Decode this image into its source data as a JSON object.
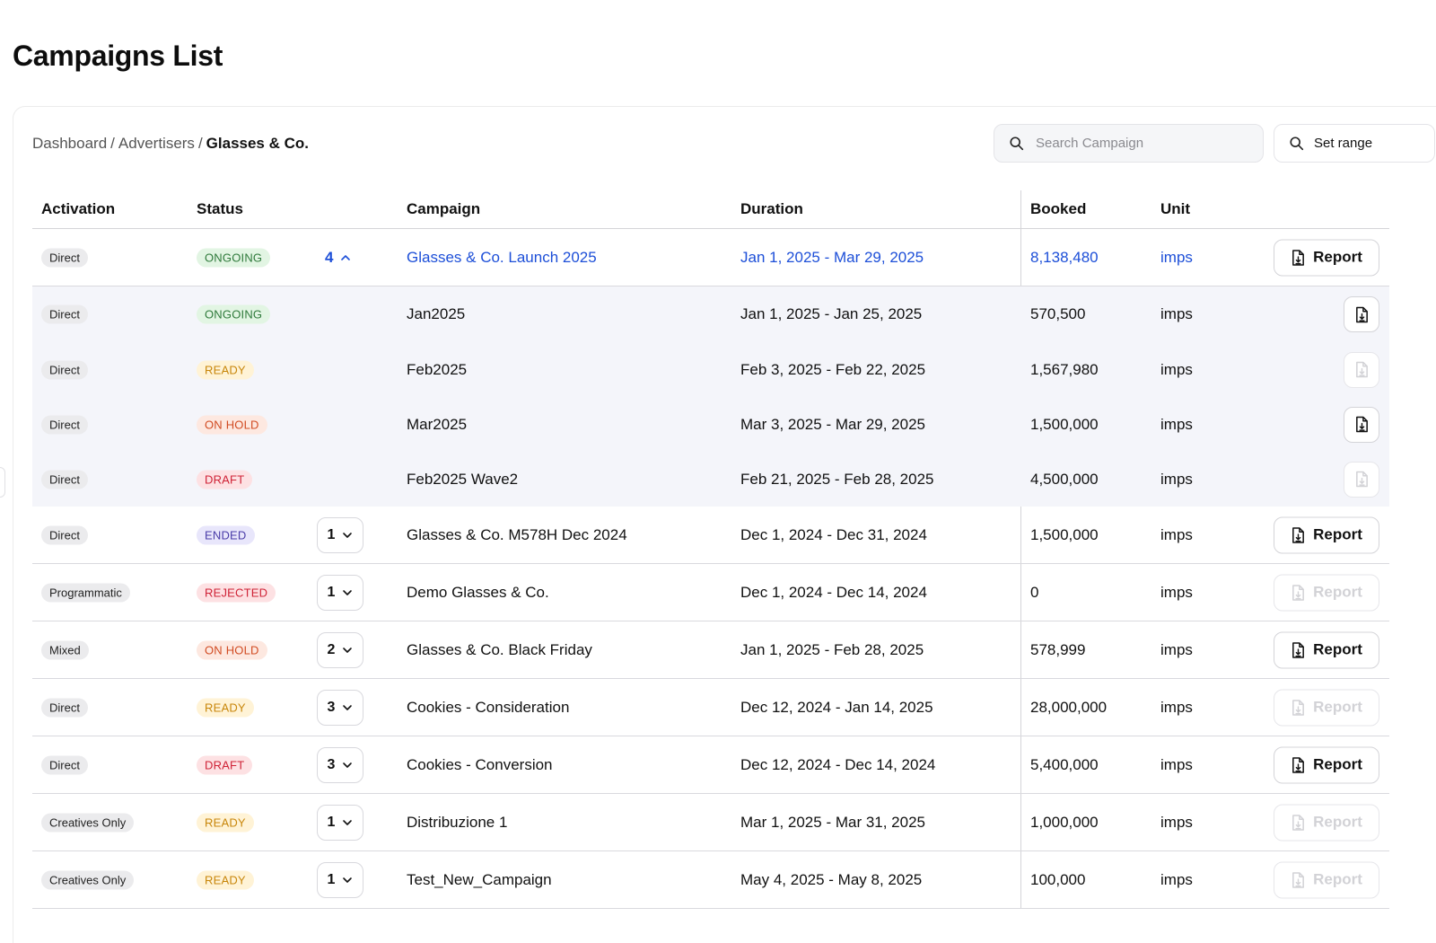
{
  "page": {
    "title": "Campaigns List"
  },
  "breadcrumb": {
    "items": [
      "Dashboard",
      "Advertisers"
    ],
    "current": "Glasses & Co.",
    "separator": "/"
  },
  "search": {
    "placeholder": "Search Campaign",
    "value": ""
  },
  "range_button": {
    "label": "Set range"
  },
  "table": {
    "columns": {
      "activation": "Activation",
      "status": "Status",
      "campaign": "Campaign",
      "duration": "Duration",
      "booked": "Booked",
      "unit": "Unit"
    },
    "report_label": "Report",
    "rows": [
      {
        "activation": "Direct",
        "status": "ONGOING",
        "count": "4",
        "expanded": true,
        "campaign": "Glasses & Co. Launch 2025",
        "duration": "Jan 1, 2025 - Mar 29, 2025",
        "booked": "8,138,480",
        "unit": "imps",
        "report_enabled": true
      },
      {
        "activation": "Direct",
        "status": "ONGOING",
        "campaign": "Jan2025",
        "duration": "Jan 1, 2025 - Jan 25, 2025",
        "booked": "570,500",
        "unit": "imps",
        "report_enabled": true,
        "sub": true
      },
      {
        "activation": "Direct",
        "status": "READY",
        "campaign": "Feb2025",
        "duration": "Feb 3, 2025 - Feb 22, 2025",
        "booked": "1,567,980",
        "unit": "imps",
        "report_enabled": false,
        "sub": true
      },
      {
        "activation": "Direct",
        "status": "ON HOLD",
        "campaign": "Mar2025",
        "duration": "Mar 3, 2025 - Mar 29, 2025",
        "booked": "1,500,000",
        "unit": "imps",
        "report_enabled": true,
        "sub": true
      },
      {
        "activation": "Direct",
        "status": "DRAFT",
        "campaign": "Feb2025 Wave2",
        "duration": "Feb 21, 2025 - Feb 28, 2025",
        "booked": "4,500,000",
        "unit": "imps",
        "report_enabled": false,
        "sub": true
      },
      {
        "activation": "Direct",
        "status": "ENDED",
        "count": "1",
        "campaign": "Glasses & Co. M578H Dec 2024",
        "duration": "Dec 1, 2024 - Dec 31, 2024",
        "booked": "1,500,000",
        "unit": "imps",
        "report_enabled": true
      },
      {
        "activation": "Programmatic",
        "status": "REJECTED",
        "count": "1",
        "campaign": "Demo Glasses & Co.",
        "duration": "Dec 1, 2024 - Dec 14, 2024",
        "booked": "0",
        "unit": "imps",
        "report_enabled": false
      },
      {
        "activation": "Mixed",
        "status": "ON HOLD",
        "count": "2",
        "campaign": "Glasses & Co. Black Friday",
        "duration": "Jan 1, 2025 - Feb 28, 2025",
        "booked": "578,999",
        "unit": "imps",
        "report_enabled": true
      },
      {
        "activation": "Direct",
        "status": "READY",
        "count": "3",
        "campaign": "Cookies - Consideration",
        "duration": "Dec 12, 2024 - Jan 14, 2025",
        "booked": "28,000,000",
        "unit": "imps",
        "report_enabled": false
      },
      {
        "activation": "Direct",
        "status": "DRAFT",
        "count": "3",
        "campaign": "Cookies - Conversion",
        "duration": "Dec 12, 2024 - Dec 14, 2024",
        "booked": "5,400,000",
        "unit": "imps",
        "report_enabled": true
      },
      {
        "activation": "Creatives Only",
        "status": "READY",
        "count": "1",
        "campaign": "Distribuzione 1",
        "duration": "Mar 1, 2025 - Mar 31, 2025",
        "booked": "1,000,000",
        "unit": "imps",
        "report_enabled": false
      },
      {
        "activation": "Creatives Only",
        "status": "READY",
        "count": "1",
        "campaign": "Test_New_Campaign",
        "duration": "May 4, 2025 - May 8, 2025",
        "booked": "100,000",
        "unit": "imps",
        "report_enabled": false
      }
    ]
  },
  "colors": {
    "link": "#1d4fd8",
    "sub_row_bg": "#f4f5fa"
  },
  "icons": {
    "search": "search-icon",
    "report": "file-download-icon",
    "chevron_down": "chevron-down-icon",
    "chevron_up": "chevron-up-icon"
  }
}
